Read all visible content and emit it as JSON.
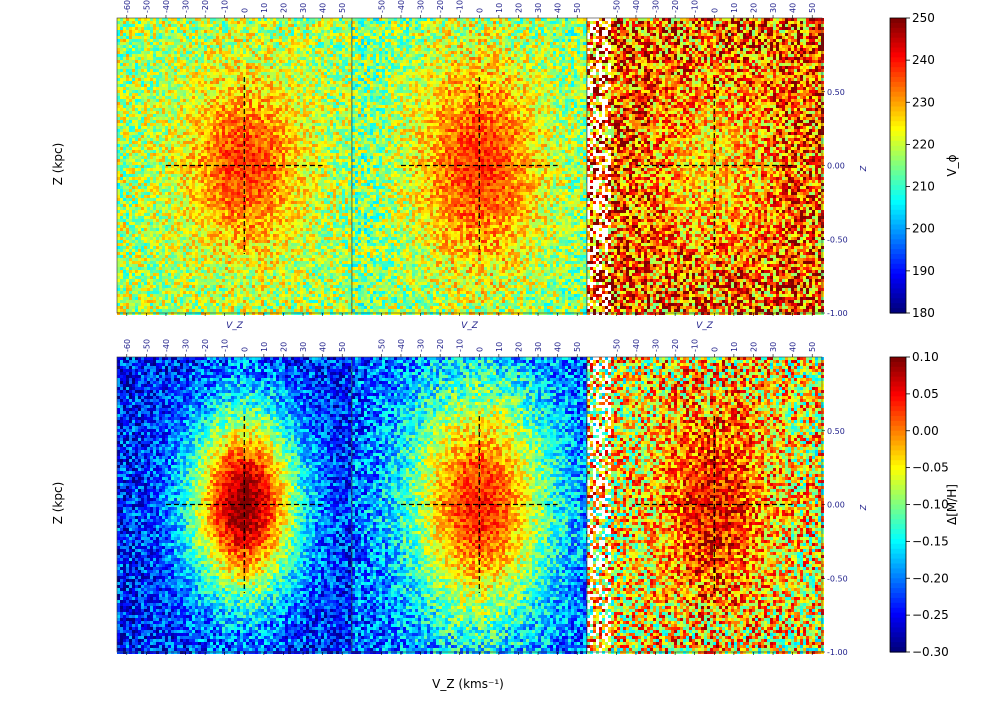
{
  "chart_data": {
    "type": "heatmap",
    "xlabel": "V_Z (kms⁻¹)",
    "ylabel": "Z (kpc)",
    "panel_xlabel": "V_Z",
    "right_ylabel": "Z",
    "x_tick_labels": [
      [
        "-60",
        "-50",
        "-40",
        "-30",
        "-20",
        "-10",
        "0",
        "10",
        "20",
        "30",
        "40",
        "50"
      ],
      [
        "-50",
        "-40",
        "-30",
        "-20",
        "-10",
        "0",
        "10",
        "20",
        "30",
        "40",
        "50"
      ],
      [
        "-50",
        "-40",
        "-30",
        "-20",
        "-10",
        "0",
        "10",
        "20",
        "30",
        "40",
        "50"
      ]
    ],
    "z_tick_labels": [
      "0.50",
      "0.00",
      "-0.50",
      "-1.00"
    ],
    "z_ticks": [
      0.5,
      0.0,
      -0.5,
      -1.0
    ],
    "zlim": [
      -1.0,
      1.0
    ],
    "colormap": "jet",
    "grid": false,
    "crosshair": {
      "x": 0,
      "z": 0,
      "style": "dashed",
      "color": "#000000"
    },
    "rows": [
      {
        "colorbar_label": "V_ϕ",
        "colorbar_range": [
          180,
          250
        ],
        "colorbar_ticks": [
          "250",
          "240",
          "230",
          "220",
          "210",
          "200",
          "190",
          "180"
        ],
        "colorbar_tick_values": [
          250,
          240,
          230,
          220,
          210,
          200,
          190,
          180
        ],
        "panels": [
          {
            "center_value": 238,
            "outer_value": 218,
            "vz_spread": 27,
            "z_spread": 0.55
          },
          {
            "center_value": 238,
            "outer_value": 215,
            "vz_spread": 32,
            "z_spread": 0.75
          },
          {
            "center_value": 226,
            "outer_value": 236,
            "vz_spread": 30,
            "z_spread": 0.6
          }
        ]
      },
      {
        "colorbar_label": "Δ[M/H]",
        "colorbar_range": [
          -0.3,
          0.1
        ],
        "colorbar_ticks": [
          "0.10",
          "0.05",
          "0.00",
          "−0.05",
          "−0.10",
          "−0.15",
          "−0.20",
          "−0.25",
          "−0.30"
        ],
        "colorbar_tick_values": [
          0.1,
          0.05,
          0.0,
          -0.05,
          -0.1,
          -0.15,
          -0.2,
          -0.25,
          -0.3
        ],
        "panels": [
          {
            "center_value": 0.1,
            "outer_value": -0.24,
            "vz_spread": 26,
            "z_spread": 0.6
          },
          {
            "center_value": 0.04,
            "outer_value": -0.22,
            "vz_spread": 35,
            "z_spread": 0.8
          },
          {
            "center_value": 0.05,
            "outer_value": -0.05,
            "vz_spread": 25,
            "z_spread": 0.7
          }
        ]
      }
    ]
  }
}
